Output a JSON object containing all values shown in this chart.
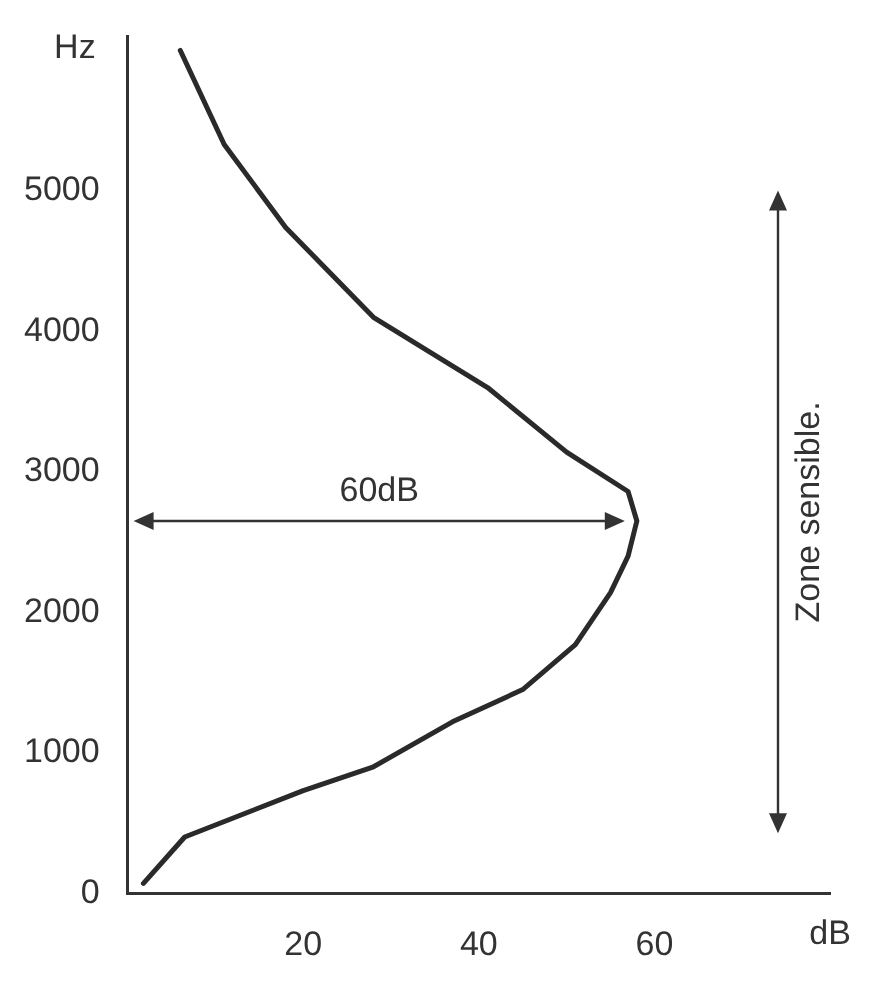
{
  "chart_data": {
    "type": "line",
    "xlabel": "dB",
    "ylabel": "Hz",
    "xlim": [
      0,
      80
    ],
    "xticks": [
      20,
      40,
      60
    ],
    "ylim": [
      0,
      6100
    ],
    "yticks": [
      0,
      1000,
      2000,
      3000,
      4000,
      5000
    ],
    "series": [
      {
        "color": "#2a2a2a",
        "x": [
          1.8,
          6.5,
          20,
          28,
          37,
          45,
          51,
          55,
          57,
          58,
          57,
          50,
          41,
          28,
          18,
          11,
          6
        ],
        "values": [
          70,
          400,
          730,
          900,
          1220,
          1450,
          1770,
          2140,
          2400,
          2650,
          2860,
          3140,
          3600,
          4100,
          4740,
          5330,
          6000
        ]
      }
    ],
    "annotations": [
      "60dB",
      "Zone sensible."
    ],
    "grid": false,
    "legend": false,
    "marker": "none",
    "line_style": "solid"
  }
}
